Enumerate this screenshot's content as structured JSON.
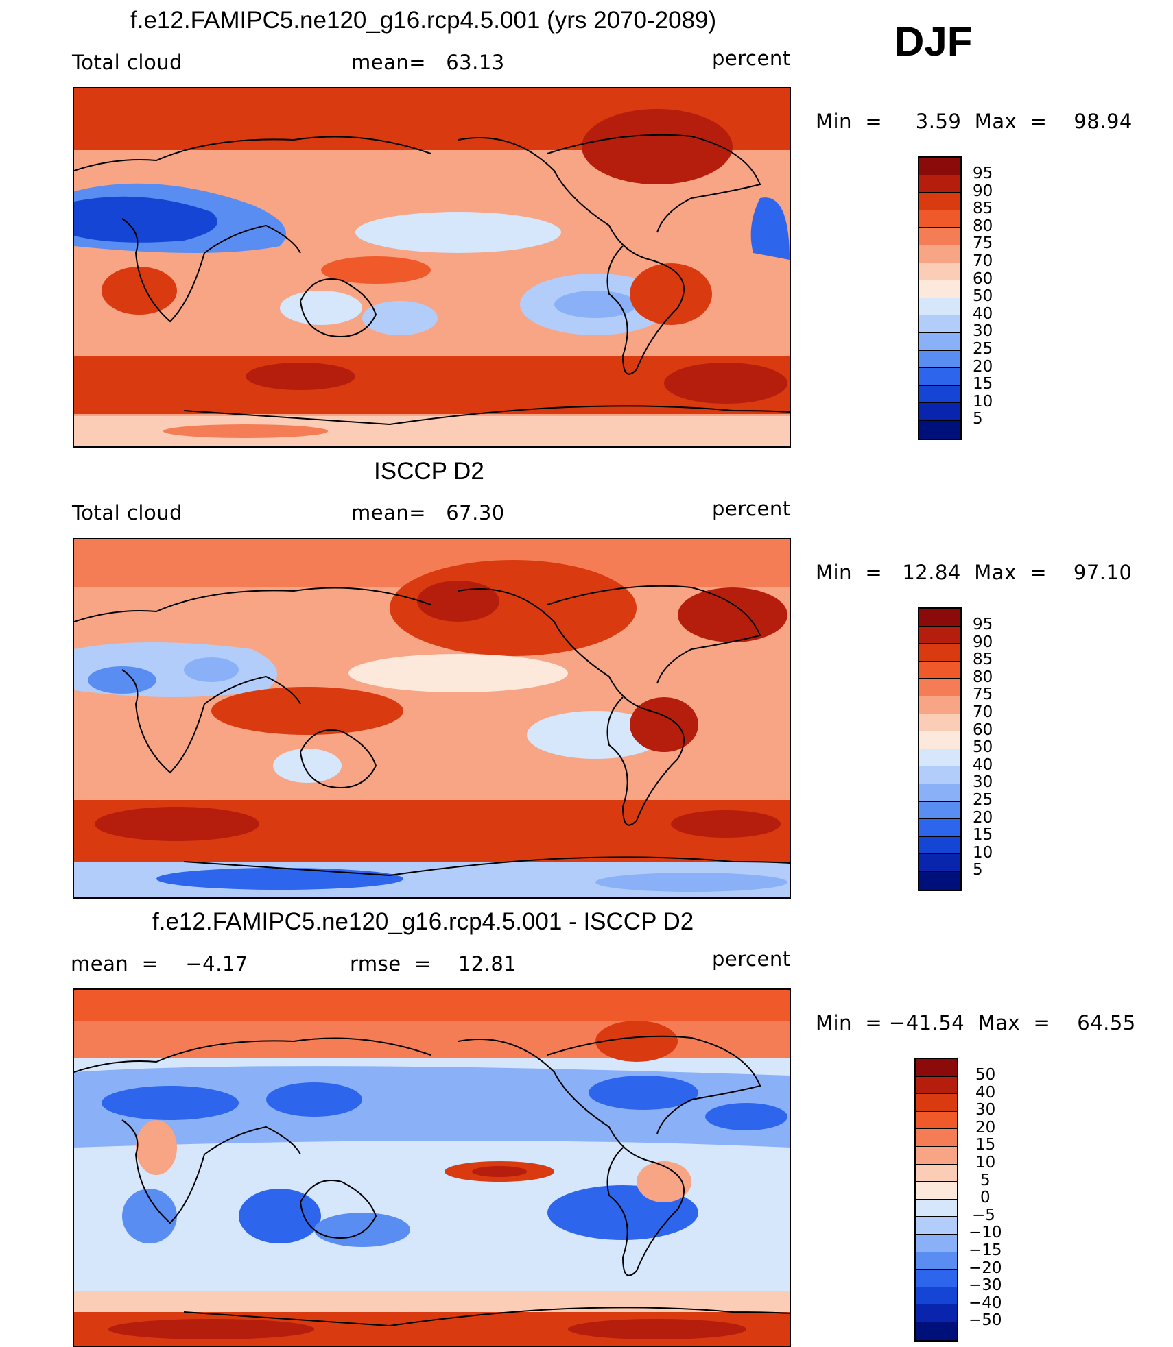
{
  "season": "DJF",
  "panels": [
    {
      "id": "model",
      "title": "f.e12.FAMIPC5.ne120_g16.rcp4.5.001 (yrs 2070-2089)",
      "left_label": "Total cloud",
      "center_label": "mean=   63.13",
      "units": "percent",
      "minmax": "Min  =     3.59  Max  =    98.94",
      "colorbar_levels": [
        "95",
        "90",
        "85",
        "80",
        "75",
        "70",
        "60",
        "50",
        "40",
        "30",
        "25",
        "20",
        "15",
        "10",
        "5"
      ]
    },
    {
      "id": "obs",
      "title": "ISCCP D2",
      "left_label": "Total cloud",
      "center_label": "mean=   67.30",
      "units": "percent",
      "minmax": "Min  =   12.84  Max  =    97.10",
      "colorbar_levels": [
        "95",
        "90",
        "85",
        "80",
        "75",
        "70",
        "60",
        "50",
        "40",
        "30",
        "25",
        "20",
        "15",
        "10",
        "5"
      ]
    },
    {
      "id": "diff",
      "title": "f.e12.FAMIPC5.ne120_g16.rcp4.5.001 - ISCCP D2",
      "left_label": "mean  =    −4.17",
      "center_label": "rmse  =    12.81",
      "units": "percent",
      "minmax": "Min  = −41.54  Max  =    64.55",
      "colorbar_levels": [
        "50",
        "40",
        "30",
        "20",
        "15",
        "10",
        "5",
        "0",
        "−5",
        "−10",
        "−15",
        "−20",
        "−30",
        "−40",
        "−50"
      ]
    }
  ],
  "colors": {
    "scale": [
      "#8b0a0a",
      "#b51d0d",
      "#d93a10",
      "#f05a2a",
      "#f47d55",
      "#f7a585",
      "#fbcdb6",
      "#fde8dc",
      "#d6e6fb",
      "#b3cdfa",
      "#8ab0f7",
      "#5a8df2",
      "#2d66ec",
      "#1445d4",
      "#0a25ad",
      "#00107a"
    ]
  }
}
